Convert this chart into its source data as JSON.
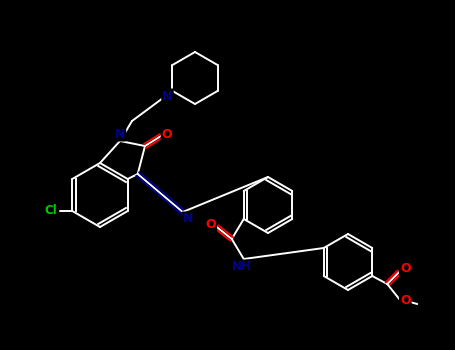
{
  "bg_color": "#000000",
  "line_color": "#ffffff",
  "atom_colors": {
    "N": "#00008B",
    "O": "#FF0000",
    "Cl": "#00CC00"
  },
  "figsize": [
    4.55,
    3.5
  ],
  "dpi": 100,
  "lw": 1.4
}
